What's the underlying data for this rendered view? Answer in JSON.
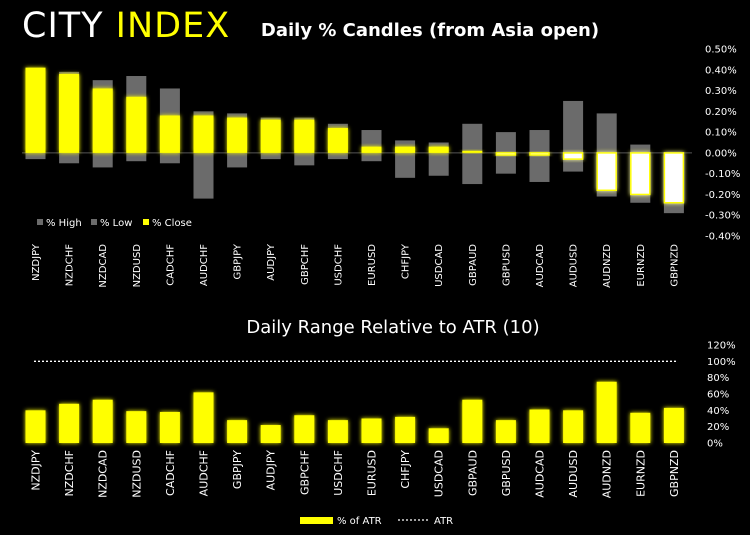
{
  "brand": {
    "part1": "CITY",
    "part2": "INDEX"
  },
  "colors": {
    "background": "#000000",
    "accent": "#ffff00",
    "text": "#ffffff",
    "grey": "#6b6b6b"
  },
  "chart_data": [
    {
      "type": "bar",
      "title": "Daily % Candles (from Asia open)",
      "categories": [
        "NZDJPY",
        "NZDCHF",
        "NZDCAD",
        "NZDUSD",
        "CADCHF",
        "AUDCHF",
        "GBPJPY",
        "AUDJPY",
        "GBPCHF",
        "USDCHF",
        "EURUSD",
        "CHFJPY",
        "USDCAD",
        "GBPAUD",
        "GBPUSD",
        "AUDCAD",
        "AUDUSD",
        "AUDNZD",
        "EURNZD",
        "GBPNZD"
      ],
      "series": [
        {
          "name": "% High",
          "values": [
            0.41,
            0.39,
            0.35,
            0.37,
            0.31,
            0.2,
            0.19,
            0.17,
            0.17,
            0.14,
            0.11,
            0.06,
            0.05,
            0.14,
            0.1,
            0.11,
            0.25,
            0.19,
            0.04,
            0.0
          ]
        },
        {
          "name": "% Low",
          "values": [
            -0.03,
            -0.05,
            -0.07,
            -0.04,
            -0.05,
            -0.22,
            -0.07,
            -0.03,
            -0.06,
            -0.03,
            -0.04,
            -0.12,
            -0.11,
            -0.15,
            -0.1,
            -0.14,
            -0.09,
            -0.21,
            -0.24,
            -0.29
          ]
        },
        {
          "name": "% Close",
          "values": [
            0.41,
            0.38,
            0.31,
            0.27,
            0.18,
            0.18,
            0.17,
            0.16,
            0.16,
            0.12,
            0.03,
            0.03,
            0.03,
            0.01,
            -0.01,
            -0.01,
            -0.03,
            -0.18,
            -0.2,
            -0.24
          ]
        }
      ],
      "ylim": [
        -0.4,
        0.5
      ],
      "yticks": [
        "-0.40%",
        "-0.30%",
        "-0.20%",
        "-0.10%",
        "0.00%",
        "0.10%",
        "0.20%",
        "0.30%",
        "0.40%",
        "0.50%"
      ],
      "legend": [
        "% High",
        "% Low",
        "% Close"
      ],
      "legend_position": "bottom-left"
    },
    {
      "type": "bar",
      "title": "Daily Range Relative to ATR (10)",
      "categories": [
        "NZDJPY",
        "NZDCHF",
        "NZDCAD",
        "NZDUSD",
        "CADCHF",
        "AUDCHF",
        "GBPJPY",
        "AUDJPY",
        "GBPCHF",
        "USDCHF",
        "EURUSD",
        "CHFJPY",
        "USDCAD",
        "GBPAUD",
        "GBPUSD",
        "AUDCAD",
        "AUDUSD",
        "AUDNZD",
        "EURNZD",
        "GBPNZD"
      ],
      "series": [
        {
          "name": "% of ATR",
          "values": [
            40,
            48,
            53,
            39,
            38,
            62,
            28,
            22,
            34,
            28,
            30,
            32,
            18,
            53,
            28,
            41,
            40,
            75,
            37,
            43
          ]
        },
        {
          "name": "ATR",
          "values": [
            100,
            100,
            100,
            100,
            100,
            100,
            100,
            100,
            100,
            100,
            100,
            100,
            100,
            100,
            100,
            100,
            100,
            100,
            100,
            100
          ]
        }
      ],
      "ylim": [
        0,
        120
      ],
      "yticks": [
        "0%",
        "20%",
        "40%",
        "60%",
        "80%",
        "100%",
        "120%"
      ],
      "legend": [
        "% of ATR",
        "ATR"
      ],
      "legend_position": "bottom-center"
    }
  ]
}
